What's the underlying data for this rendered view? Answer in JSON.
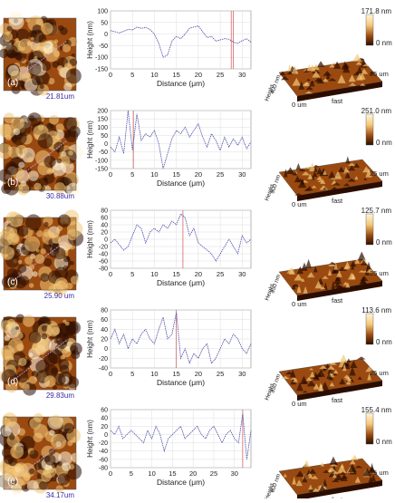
{
  "colors": {
    "afm_dark": "#2b0d00",
    "afm_mid": "#9a4a10",
    "afm_light": "#f4c878",
    "afm_highlight": "#fff6dc",
    "profile_line": "#4a4aa8",
    "grid": "#dddddd",
    "scan_line": "#c8a0e0",
    "marker_red": "#d05050",
    "scale_text": "#3a2aa0"
  },
  "chart_data": [
    {
      "type": "line",
      "panel_label": "(a)",
      "scalebar_label": "21.81um",
      "xlabel": "Distance (μm)",
      "ylabel": "Height (nm)",
      "xlim": [
        0,
        32
      ],
      "ylim": [
        -150,
        100
      ],
      "x_ticks": [
        0,
        5,
        10,
        15,
        20,
        25,
        30
      ],
      "y_ticks": [
        100,
        50,
        0,
        -50,
        -100,
        -150
      ],
      "y_tick_labels": [
        "100",
        "50",
        "0",
        "-50",
        "-100",
        "-150"
      ],
      "x": [
        0,
        1,
        2,
        3,
        4,
        5,
        6,
        7,
        8,
        9,
        10,
        11,
        12,
        13,
        14,
        15,
        16,
        17,
        18,
        19,
        20,
        21,
        22,
        23,
        24,
        25,
        26,
        27,
        28,
        29,
        30,
        31,
        32
      ],
      "y": [
        15,
        10,
        5,
        12,
        20,
        18,
        30,
        25,
        28,
        20,
        0,
        -40,
        -100,
        -90,
        -30,
        -10,
        -20,
        0,
        25,
        30,
        35,
        10,
        -15,
        -10,
        -30,
        -25,
        -20,
        -22,
        -35,
        -40,
        -28,
        -20,
        -35
      ],
      "markers_x": [
        27.5,
        28
      ],
      "colorbar_max": "171.8 nm",
      "colorbar_min": "0 nm",
      "axis_3d": {
        "slow": "400 nm",
        "fast_label": "fast",
        "origin_label": "0 um",
        "end_label": "25 um",
        "depth_label": "Height"
      }
    },
    {
      "type": "line",
      "panel_label": "(b)",
      "scalebar_label": "30.88um",
      "xlabel": "Distance (μm)",
      "ylabel": "Height (nm)",
      "xlim": [
        0,
        32
      ],
      "ylim": [
        -150,
        200
      ],
      "x_ticks": [
        0,
        5,
        10,
        15,
        20,
        25,
        30
      ],
      "y_ticks": [
        200,
        150,
        100,
        50,
        0,
        -50,
        -100,
        -150
      ],
      "y_tick_labels": [
        "200",
        "150",
        "100",
        "50",
        "0",
        "-50",
        "-100",
        "-150"
      ],
      "x": [
        0,
        1,
        2,
        3,
        4,
        5,
        6,
        7,
        8,
        9,
        10,
        11,
        12,
        13,
        14,
        15,
        16,
        17,
        18,
        19,
        20,
        21,
        22,
        23,
        24,
        25,
        26,
        27,
        28,
        29,
        30,
        31,
        32
      ],
      "y": [
        -20,
        -50,
        40,
        -60,
        200,
        -40,
        180,
        20,
        60,
        40,
        80,
        0,
        -150,
        -60,
        30,
        80,
        60,
        100,
        40,
        80,
        120,
        40,
        -20,
        60,
        20,
        -40,
        40,
        -20,
        30,
        -10,
        40,
        -30,
        10
      ],
      "markers_x": [
        5.2
      ],
      "colorbar_max": "251.0 nm",
      "colorbar_min": "0 nm",
      "axis_3d": {
        "slow": "500 nm",
        "fast_label": "fast",
        "origin_label": "0 um",
        "end_label": "25 um",
        "depth_label": "Height"
      }
    },
    {
      "type": "line",
      "panel_label": "(c)",
      "scalebar_label": "25.90 um",
      "xlabel": "Distance (μm)",
      "ylabel": "Height (nm)",
      "xlim": [
        0,
        32
      ],
      "ylim": [
        -80,
        80
      ],
      "x_ticks": [
        0,
        5,
        10,
        15,
        20,
        25,
        30
      ],
      "y_ticks": [
        80,
        60,
        40,
        20,
        0,
        -20,
        -40,
        -60,
        -80
      ],
      "y_tick_labels": [
        "80",
        "60",
        "40",
        "20",
        "0",
        "-20",
        "-40",
        "-60",
        "-80"
      ],
      "x": [
        0,
        1,
        2,
        3,
        4,
        5,
        6,
        7,
        8,
        9,
        10,
        11,
        12,
        13,
        14,
        15,
        16,
        17,
        18,
        19,
        20,
        21,
        22,
        23,
        24,
        25,
        26,
        27,
        28,
        29,
        30,
        31,
        32
      ],
      "y": [
        -10,
        0,
        -15,
        -30,
        -20,
        10,
        40,
        30,
        -10,
        20,
        30,
        20,
        40,
        30,
        50,
        40,
        70,
        60,
        10,
        30,
        -10,
        -20,
        -30,
        -40,
        -60,
        -40,
        -20,
        0,
        -20,
        -40,
        10,
        -10,
        0
      ],
      "markers_x": [
        16.5
      ],
      "colorbar_max": "125.7 nm",
      "colorbar_min": "0 nm",
      "axis_3d": {
        "slow": "350 nm",
        "fast_label": "fast",
        "origin_label": "0 um",
        "end_label": "25 um",
        "depth_label": "Height"
      }
    },
    {
      "type": "line",
      "panel_label": "(d)",
      "scalebar_label": "29.83um",
      "xlabel": "Distance (μm)",
      "ylabel": "Height (nm)",
      "xlim": [
        0,
        32
      ],
      "ylim": [
        -40,
        80
      ],
      "x_ticks": [
        0,
        5,
        10,
        15,
        20,
        25,
        30
      ],
      "y_ticks": [
        80,
        60,
        40,
        20,
        0,
        -20,
        -40
      ],
      "y_tick_labels": [
        "80",
        "60",
        "40",
        "20",
        "0",
        "-20",
        "-40"
      ],
      "x": [
        0,
        1,
        2,
        3,
        4,
        5,
        6,
        7,
        8,
        9,
        10,
        11,
        12,
        13,
        14,
        15,
        16,
        17,
        18,
        19,
        20,
        21,
        22,
        23,
        24,
        25,
        26,
        27,
        28,
        29,
        30,
        31,
        32
      ],
      "y": [
        20,
        40,
        10,
        30,
        0,
        20,
        10,
        30,
        40,
        20,
        10,
        40,
        65,
        20,
        30,
        75,
        -20,
        0,
        -30,
        -10,
        -20,
        0,
        10,
        -30,
        -20,
        0,
        20,
        10,
        30,
        20,
        0,
        -10,
        10
      ],
      "markers_x": [
        15
      ],
      "colorbar_max": "113.6 nm",
      "colorbar_min": "0 nm",
      "axis_3d": {
        "slow": "350 nm",
        "fast_label": "fast",
        "origin_label": "0 um",
        "end_label": "25 um",
        "depth_label": "Height"
      }
    },
    {
      "type": "line",
      "panel_label": "(e)",
      "scalebar_label": "34.17um",
      "xlabel": "Distance (μm)",
      "ylabel": "Height (nm)",
      "xlim": [
        0,
        34
      ],
      "ylim": [
        -80,
        60
      ],
      "x_ticks": [
        0,
        5,
        10,
        15,
        20,
        25,
        30
      ],
      "y_ticks": [
        60,
        40,
        20,
        0,
        -20,
        -40,
        -60,
        -80
      ],
      "y_tick_labels": [
        "60",
        "40",
        "20",
        "0",
        "-20",
        "-40",
        "-60",
        "-80"
      ],
      "x": [
        0,
        1,
        2,
        3,
        4,
        5,
        6,
        7,
        8,
        9,
        10,
        11,
        12,
        13,
        14,
        15,
        16,
        17,
        18,
        19,
        20,
        21,
        22,
        23,
        24,
        25,
        26,
        27,
        28,
        29,
        30,
        31,
        32,
        33,
        34
      ],
      "y": [
        10,
        0,
        20,
        -10,
        0,
        10,
        0,
        -10,
        -20,
        10,
        -10,
        20,
        0,
        -40,
        -10,
        0,
        10,
        20,
        -10,
        0,
        10,
        20,
        0,
        -10,
        10,
        20,
        0,
        -20,
        0,
        10,
        -10,
        -20,
        50,
        -60,
        10
      ],
      "markers_x": [
        32
      ],
      "colorbar_max": "155.4 nm",
      "colorbar_min": "0 nm",
      "axis_3d": {
        "slow": "600 nm",
        "fast_label": "fast",
        "origin_label": "0 um",
        "end_label": "25 um",
        "depth_label": "Height"
      }
    }
  ]
}
